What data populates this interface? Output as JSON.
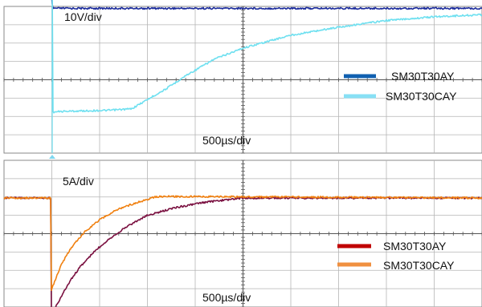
{
  "chart_data": [
    {
      "type": "line",
      "channel": "voltage",
      "vertical_scale": "10V/div",
      "time_scale": "500µs/div",
      "grid": true,
      "divisions": {
        "horizontal": 10,
        "vertical": 8
      },
      "legend_placement": "right",
      "x_unit_note": "time in µs, ~0 at switching edge",
      "series": [
        {
          "name": "SM30T30AY",
          "color": "#1a2a9c",
          "legend_color": "#1060b0",
          "x": [
            -290,
            -25,
            -10,
            0,
            5,
            20,
            100,
            4700
          ],
          "y": [
            25.8,
            25.8,
            24.0,
            20.8,
            19.8,
            19.8,
            19.8,
            19.8
          ]
        },
        {
          "name": "SM30T30CAY",
          "color": "#6fe0f0",
          "legend_color": "#88e0f5",
          "x": [
            -290,
            -20,
            -10,
            0,
            5,
            100,
            600,
            830,
            1000,
            1200,
            1400,
            1700,
            2000,
            2500,
            3000,
            3500,
            4000,
            4700
          ],
          "y": [
            25.8,
            25.8,
            25.8,
            25.5,
            -8.5,
            -8.3,
            -8.0,
            -7.6,
            -5.0,
            -2.0,
            1.5,
            6.0,
            9.0,
            12.5,
            14.7,
            16.5,
            17.5,
            18.3
          ]
        }
      ]
    },
    {
      "type": "line",
      "channel": "current",
      "vertical_scale": "5A/div",
      "time_scale": "500µs/div",
      "grid": true,
      "divisions": {
        "horizontal": 10,
        "vertical": 8
      },
      "legend_placement": "bottom-right",
      "x_unit_note": "time in µs, ~0 at switching edge",
      "series": [
        {
          "name": "SM30T30AY",
          "color": "#7a1040",
          "legend_color": "#c00000",
          "x": [
            -290,
            -5,
            0,
            100,
            200,
            300,
            450,
            600,
            800,
            1000,
            1300,
            1600,
            2000,
            4700
          ],
          "y": [
            0,
            0,
            -16.0,
            -13.5,
            -11.2,
            -9.4,
            -7.3,
            -5.6,
            -3.8,
            -2.4,
            -1.3,
            -0.6,
            0,
            0
          ]
        },
        {
          "name": "SM30T30CAY",
          "color": "#f08010",
          "legend_color": "#f09040",
          "x": [
            -290,
            -5,
            0,
            100,
            200,
            350,
            500,
            700,
            900,
            1100,
            1300,
            4700
          ],
          "y": [
            0,
            0,
            -12.5,
            -9.2,
            -6.9,
            -4.6,
            -3.0,
            -1.5,
            -0.6,
            0.2,
            0.2,
            0
          ]
        }
      ]
    }
  ]
}
